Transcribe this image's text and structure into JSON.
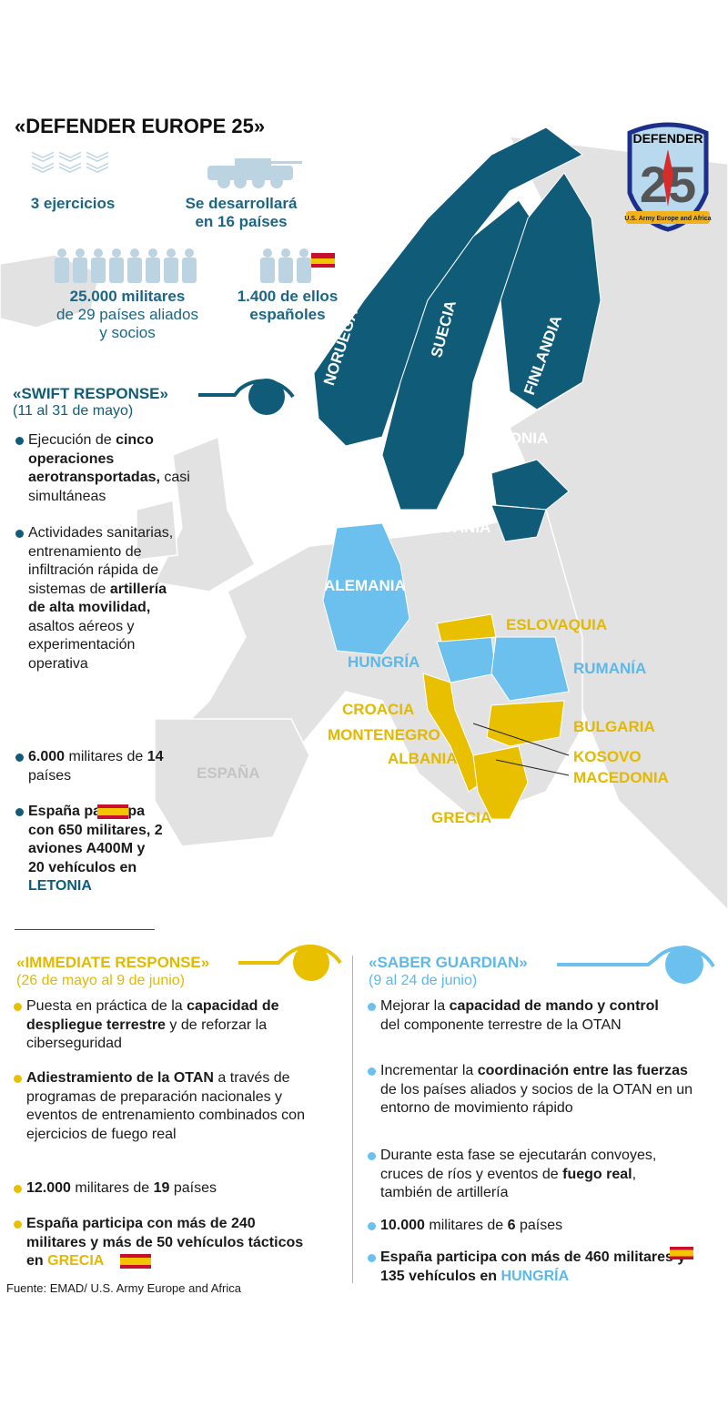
{
  "title": "«DEFENDER EUROPE 25»",
  "colors": {
    "swift": "#105c78",
    "immediate": "#e8c000",
    "saber": "#6cc0ee",
    "land": "#e2e2e2"
  },
  "logo": {
    "text_top": "DEFENDER",
    "number": "25",
    "ribbon": "U.S. Army Europe and Africa"
  },
  "stats": [
    {
      "icon": "chevrons-icon",
      "line1": "3 ejercicios"
    },
    {
      "icon": "armored-vehicle-icon",
      "line1": "Se desarrollará",
      "line2": "en 16 países"
    },
    {
      "icon": "soldiers-icon",
      "line1": "25.000 militares",
      "line2": "de 29 países aliados",
      "line3": "y socios"
    },
    {
      "icon": "spanish-soldiers-icon",
      "line1": "1.400 de ellos",
      "line2": "españoles"
    }
  ],
  "map_labels": {
    "noruega": "NORUEGA",
    "suecia": "SUECIA",
    "finlandia": "FINLANDIA",
    "letonia": "LETONIA",
    "lituania": "LITUANIA",
    "alemania": "ALEMANIA",
    "eslovaquia": "ESLOVAQUIA",
    "hungria": "HUNGRÍA",
    "rumania": "RUMANÍA",
    "croacia": "CROACIA",
    "montenegro": "MONTENEGRO",
    "albania": "ALBANIA",
    "bulgaria": "BULGARIA",
    "kosovo": "KOSOVO",
    "macedonia": "MACEDONIA",
    "grecia": "GRECIA",
    "espana": "ESPAÑA"
  },
  "swift": {
    "title": "«SWIFT RESPONSE»",
    "dates": "(11 al 31 de mayo)",
    "b1": {
      "t1": "Ejecución de ",
      "b1": "cinco operaciones aerotransportadas,",
      "t2": " casi simultáneas"
    },
    "b2": {
      "t1": "Actividades sanitarias, entrenamiento de infiltración rápida de sistemas de ",
      "b1": "artillería de alta movilidad,",
      "t2": " asaltos aéreos y experimentación operativa"
    },
    "b3": {
      "b1": "6.000",
      "t1": " militares de ",
      "b2": "14",
      "t2": " países"
    },
    "b4": {
      "b1": "España participa con 650 militares, 2 aviones A400M y 20 vehículos en ",
      "hl": "LETONIA"
    }
  },
  "immediate": {
    "title": "«IMMEDIATE RESPONSE»",
    "dates": "(26 de mayo al 9 de junio)",
    "b1": {
      "t1": "Puesta en práctica de la ",
      "b1": "capacidad de despliegue terrestre",
      "t2": " y de reforzar la ciberseguridad"
    },
    "b2": {
      "b1": "Adiestramiento de la OTAN",
      "t1": " a través de programas de preparación nacionales y eventos de entrenamiento combinados con ejercicios de fuego real"
    },
    "b3": {
      "b1": "12.000",
      "t1": " militares de ",
      "b2": "19",
      "t2": " países"
    },
    "b4": {
      "b1": "España participa con más de 240 militares y más de 50 vehículos tácticos en ",
      "hl": "GRECIA"
    }
  },
  "saber": {
    "title": "«SABER GUARDIAN»",
    "dates": "(9 al 24 de junio)",
    "b1": {
      "t1": "Mejorar la ",
      "b1": "capacidad de mando y control",
      "t2": " del componente terrestre de la OTAN"
    },
    "b2": {
      "t1": "Incrementar la ",
      "b1": "coordinación entre las fuerzas",
      "t2": " de los países aliados y socios de la OTAN en un entorno de movimiento rápido"
    },
    "b3": {
      "t1": "Durante esta fase se ejecutarán convoyes, cruces de ríos y eventos de ",
      "b1": "fuego real",
      "t2": ", también de artillería"
    },
    "b4": {
      "b1": "10.000",
      "t1": " militares de ",
      "b2": "6",
      "t2": " países"
    },
    "b5": {
      "b1": "España participa con más de 460 militares y 135 vehículos en ",
      "hl": "HUNGRÍA"
    }
  },
  "source": "Fuente: EMAD/ U.S. Army Europe and Africa"
}
